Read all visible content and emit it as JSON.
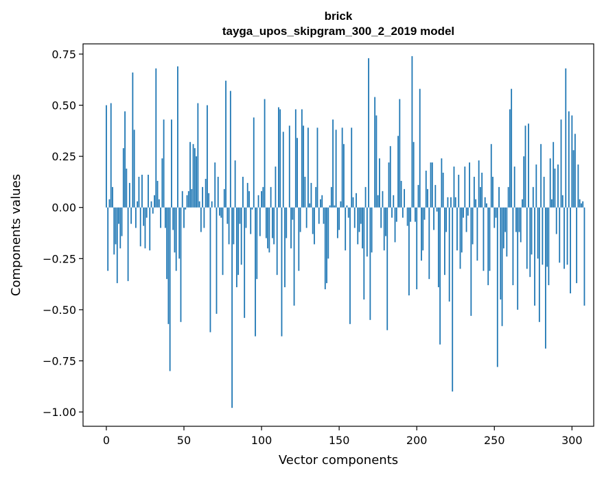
{
  "chart_data": {
    "type": "bar",
    "title": "brick",
    "subtitle": "tayga_upos_skipgram_300_2_2019 model",
    "xlabel": "Vector components",
    "ylabel": "Components values",
    "xlim": [
      -15,
      314
    ],
    "ylim": [
      -1.07,
      0.8
    ],
    "xticks": [
      0,
      50,
      100,
      150,
      200,
      250,
      300
    ],
    "xtick_labels": [
      "0",
      "50",
      "100",
      "150",
      "200",
      "250",
      "300"
    ],
    "yticks": [
      -1.0,
      -0.75,
      -0.5,
      -0.25,
      0.0,
      0.25,
      0.5,
      0.75
    ],
    "ytick_labels": [
      "−1.00",
      "−0.75",
      "−0.50",
      "−0.25",
      "0.00",
      "0.25",
      "0.50",
      "0.75"
    ],
    "bar_color": "#1f77b4",
    "grid": false,
    "values": [
      0.5,
      -0.31,
      0.04,
      0.51,
      0.1,
      -0.23,
      -0.18,
      -0.37,
      -0.08,
      -0.2,
      -0.14,
      0.29,
      0.47,
      0.19,
      -0.36,
      0.12,
      -0.08,
      0.66,
      0.38,
      -0.1,
      0.03,
      0.15,
      -0.19,
      0.16,
      -0.09,
      -0.2,
      -0.05,
      0.16,
      -0.21,
      0.03,
      -0.03,
      0.06,
      0.68,
      0.13,
      0.04,
      -0.1,
      0.24,
      0.43,
      -0.1,
      -0.35,
      -0.57,
      -0.8,
      0.43,
      -0.11,
      -0.22,
      -0.31,
      0.69,
      -0.25,
      -0.56,
      0.08,
      -0.1,
      -0.01,
      0.06,
      0.08,
      0.32,
      0.09,
      0.31,
      0.29,
      0.25,
      0.51,
      0.03,
      -0.12,
      0.1,
      -0.1,
      0.14,
      0.5,
      0.07,
      -0.61,
      0.03,
      0.0,
      0.22,
      -0.52,
      0.15,
      -0.04,
      -0.05,
      -0.33,
      0.09,
      0.62,
      -0.08,
      -0.18,
      0.57,
      -0.98,
      -0.18,
      0.23,
      -0.39,
      -0.33,
      -0.08,
      -0.28,
      0.15,
      -0.54,
      -0.1,
      0.12,
      0.08,
      -0.13,
      -0.01,
      0.44,
      -0.63,
      -0.35,
      0.06,
      -0.14,
      0.08,
      0.1,
      0.53,
      -0.15,
      -0.2,
      -0.22,
      0.1,
      -0.15,
      -0.18,
      0.2,
      -0.33,
      0.49,
      0.48,
      -0.63,
      0.37,
      -0.39,
      -0.15,
      0.0,
      0.4,
      -0.2,
      -0.06,
      -0.48,
      0.48,
      0.34,
      -0.31,
      -0.12,
      0.48,
      0.4,
      0.15,
      -0.1,
      0.39,
      0.02,
      0.12,
      -0.13,
      -0.18,
      0.1,
      0.39,
      -0.08,
      0.04,
      0.06,
      -0.08,
      -0.4,
      -0.37,
      -0.25,
      0.01,
      0.1,
      0.43,
      0.01,
      0.38,
      -0.15,
      -0.11,
      0.03,
      0.39,
      0.31,
      -0.21,
      0.01,
      -0.05,
      -0.57,
      0.39,
      0.05,
      -0.1,
      0.07,
      -0.18,
      -0.12,
      -0.08,
      -0.2,
      -0.45,
      0.1,
      -0.24,
      0.73,
      -0.55,
      -0.22,
      0.0,
      0.54,
      0.45,
      0.06,
      0.24,
      -0.1,
      0.08,
      -0.21,
      -0.14,
      -0.6,
      0.22,
      0.3,
      -0.05,
      0.06,
      -0.17,
      -0.07,
      0.35,
      0.53,
      0.13,
      -0.05,
      0.09,
      0.0,
      -0.09,
      -0.43,
      -0.07,
      0.74,
      0.32,
      -0.07,
      -0.4,
      0.11,
      0.58,
      -0.26,
      -0.21,
      -0.06,
      0.18,
      0.09,
      -0.35,
      0.22,
      0.22,
      -0.11,
      0.11,
      -0.02,
      -0.39,
      -0.67,
      0.24,
      0.17,
      -0.33,
      -0.12,
      0.05,
      -0.46,
      0.05,
      -0.9,
      0.2,
      0.05,
      -0.21,
      0.16,
      -0.3,
      -0.22,
      -0.05,
      0.2,
      -0.12,
      -0.04,
      0.22,
      -0.53,
      -0.18,
      0.15,
      0.04,
      -0.26,
      0.23,
      0.1,
      0.17,
      -0.31,
      0.05,
      0.02,
      -0.38,
      -0.31,
      0.31,
      0.15,
      -0.1,
      -0.05,
      -0.78,
      0.1,
      -0.45,
      -0.58,
      -0.2,
      -0.12,
      -0.24,
      0.1,
      0.48,
      0.58,
      -0.38,
      0.2,
      -0.12,
      -0.5,
      -0.12,
      -0.17,
      0.04,
      0.25,
      0.4,
      -0.3,
      0.41,
      -0.34,
      -0.23,
      0.1,
      -0.48,
      0.21,
      -0.25,
      -0.56,
      0.31,
      -0.28,
      0.15,
      -0.69,
      -0.29,
      -0.38,
      0.24,
      0.04,
      0.32,
      0.19,
      -0.13,
      0.21,
      -0.27,
      0.43,
      0.06,
      -0.3,
      0.68,
      -0.28,
      0.47,
      -0.42,
      0.45,
      0.28,
      0.36,
      -0.37,
      0.21,
      0.04,
      0.02,
      0.03,
      -0.48
    ]
  }
}
